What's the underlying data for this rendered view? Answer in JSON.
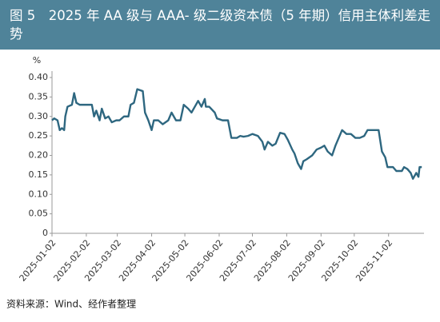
{
  "chart_data": {
    "type": "line",
    "title": "图 5　2025 年 AA 级与 AAA- 级二级资本债（5 年期）信用主体利差走势",
    "ylabel": "%",
    "source": "资料来源：Wind、经作者整理",
    "x": [
      "2025-01-02",
      "2025-01-04",
      "2025-01-07",
      "2025-01-09",
      "2025-01-11",
      "2025-01-13",
      "2025-01-14",
      "2025-01-16",
      "2025-01-20",
      "2025-01-22",
      "2025-01-24",
      "2025-01-27",
      "2025-02-03",
      "2025-02-07",
      "2025-02-09",
      "2025-02-11",
      "2025-02-14",
      "2025-02-16",
      "2025-02-19",
      "2025-02-22",
      "2025-02-25",
      "2025-03-01",
      "2025-03-04",
      "2025-03-08",
      "2025-03-12",
      "2025-03-14",
      "2025-03-17",
      "2025-03-20",
      "2025-03-25",
      "2025-03-27",
      "2025-03-30",
      "2025-04-02",
      "2025-04-04",
      "2025-04-08",
      "2025-04-12",
      "2025-04-17",
      "2025-04-20",
      "2025-04-24",
      "2025-04-28",
      "2025-05-01",
      "2025-05-05",
      "2025-05-08",
      "2025-05-11",
      "2025-05-14",
      "2025-05-17",
      "2025-05-20",
      "2025-05-21",
      "2025-05-24",
      "2025-05-29",
      "2025-05-31",
      "2025-06-05",
      "2025-06-10",
      "2025-06-13",
      "2025-06-18",
      "2025-06-21",
      "2025-06-24",
      "2025-06-28",
      "2025-07-02",
      "2025-07-07",
      "2025-07-11",
      "2025-07-13",
      "2025-07-16",
      "2025-07-20",
      "2025-07-23",
      "2025-07-27",
      "2025-07-31",
      "2025-08-03",
      "2025-08-07",
      "2025-08-09",
      "2025-08-12",
      "2025-08-15",
      "2025-08-17",
      "2025-08-20",
      "2025-08-25",
      "2025-08-29",
      "2025-09-02",
      "2025-09-05",
      "2025-09-08",
      "2025-09-12",
      "2025-09-15",
      "2025-09-18",
      "2025-09-21",
      "2025-09-25",
      "2025-09-29",
      "2025-10-03",
      "2025-10-07",
      "2025-10-11",
      "2025-10-14",
      "2025-10-20",
      "2025-10-24",
      "2025-10-27",
      "2025-10-30",
      "2025-11-01",
      "2025-11-06",
      "2025-11-09",
      "2025-11-14",
      "2025-11-16",
      "2025-11-19",
      "2025-11-22",
      "2025-11-24",
      "2025-11-27",
      "2025-11-29",
      "2025-11-30",
      "2025-12-02"
    ],
    "series": [
      {
        "color": "#2e6780",
        "values": [
          0.29,
          0.295,
          0.29,
          0.265,
          0.27,
          0.265,
          0.3,
          0.325,
          0.33,
          0.36,
          0.335,
          0.33,
          0.33,
          0.33,
          0.3,
          0.315,
          0.29,
          0.32,
          0.295,
          0.3,
          0.285,
          0.29,
          0.29,
          0.3,
          0.3,
          0.33,
          0.335,
          0.37,
          0.365,
          0.31,
          0.29,
          0.265,
          0.29,
          0.29,
          0.28,
          0.29,
          0.31,
          0.29,
          0.29,
          0.33,
          0.32,
          0.31,
          0.325,
          0.34,
          0.325,
          0.345,
          0.325,
          0.325,
          0.31,
          0.295,
          0.29,
          0.29,
          0.245,
          0.245,
          0.25,
          0.248,
          0.25,
          0.255,
          0.25,
          0.235,
          0.215,
          0.235,
          0.225,
          0.23,
          0.258,
          0.255,
          0.24,
          0.215,
          0.205,
          0.18,
          0.165,
          0.185,
          0.19,
          0.2,
          0.215,
          0.22,
          0.225,
          0.21,
          0.2,
          0.225,
          0.245,
          0.265,
          0.255,
          0.255,
          0.245,
          0.245,
          0.25,
          0.265,
          0.265,
          0.265,
          0.21,
          0.195,
          0.17,
          0.17,
          0.16,
          0.16,
          0.17,
          0.165,
          0.155,
          0.14,
          0.155,
          0.145,
          0.17,
          0.17
        ]
      }
    ],
    "xlim": [
      "2025-01-02",
      "2025-12-04"
    ],
    "xticks": [
      "2025-01-02",
      "2025-02-02",
      "2025-03-02",
      "2025-04-02",
      "2025-05-02",
      "2025-06-02",
      "2025-07-02",
      "2025-08-02",
      "2025-09-02",
      "2025-10-02",
      "2025-11-02"
    ],
    "ylim": [
      0,
      0.4
    ],
    "yticks": [
      0,
      0.05,
      {
        "value": 0.1,
        "label": "0.10"
      },
      0.15,
      {
        "value": 0.2,
        "label": "0.20"
      },
      0.25,
      {
        "value": 0.3,
        "label": "0.30"
      },
      0.35,
      {
        "value": 0.4,
        "label": "0.40"
      }
    ],
    "grid": false
  }
}
